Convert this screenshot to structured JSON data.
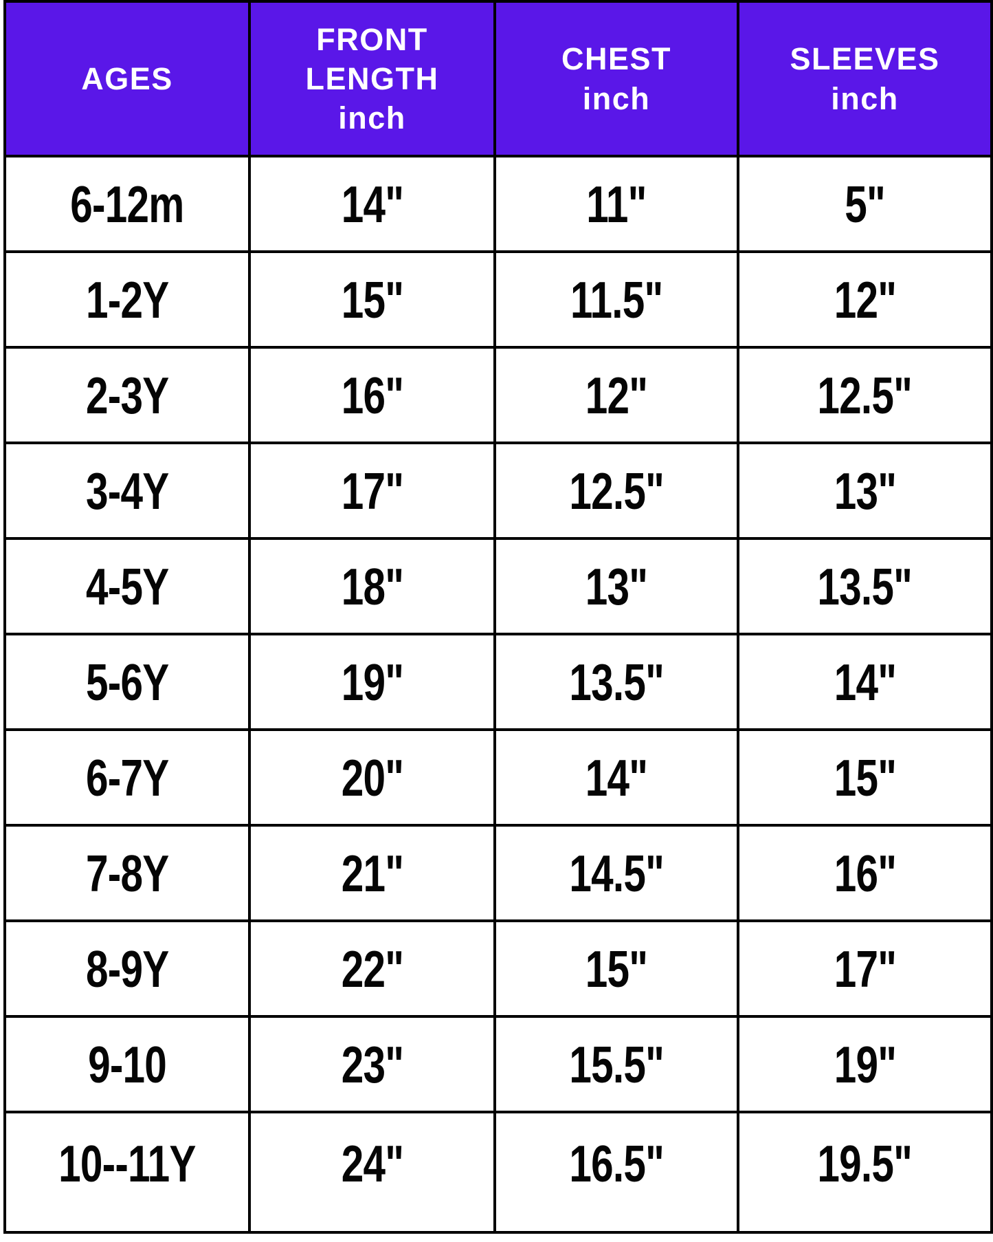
{
  "chart_data": {
    "type": "table",
    "columns": [
      "AGES",
      "FRONT LENGTH inch",
      "CHEST inch",
      "SLEEVES inch"
    ],
    "header_lines": [
      "AGES",
      "FRONT\nLENGTH\ninch",
      "CHEST\ninch",
      "SLEEVES\ninch"
    ],
    "rows": [
      [
        "6-12m",
        "14\"",
        "11\"",
        "5\""
      ],
      [
        "1-2Y",
        "15\"",
        "11.5\"",
        "12\""
      ],
      [
        "2-3Y",
        "16\"",
        "12\"",
        "12.5\""
      ],
      [
        "3-4Y",
        "17\"",
        "12.5\"",
        "13\""
      ],
      [
        "4-5Y",
        "18\"",
        "13\"",
        "13.5\""
      ],
      [
        "5-6Y",
        "19\"",
        "13.5\"",
        "14\""
      ],
      [
        "6-7Y",
        "20\"",
        "14\"",
        "15\""
      ],
      [
        "7-8Y",
        "21\"",
        "14.5\"",
        "16\""
      ],
      [
        "8-9Y",
        "22\"",
        "15\"",
        "17\""
      ],
      [
        "9-10",
        "23\"",
        "15.5\"",
        "19\""
      ],
      [
        "10--11Y",
        "24\"",
        "16.5\"",
        "19.5\""
      ]
    ],
    "colors": {
      "header_bg": "#5a17e8",
      "header_text": "#ffffff",
      "cell_text": "#050505",
      "grid": "#000000",
      "page_bg": "#ffffff"
    },
    "layout": {
      "grid": "on",
      "header_position": "top",
      "column_count": 4,
      "row_count": 11
    }
  }
}
